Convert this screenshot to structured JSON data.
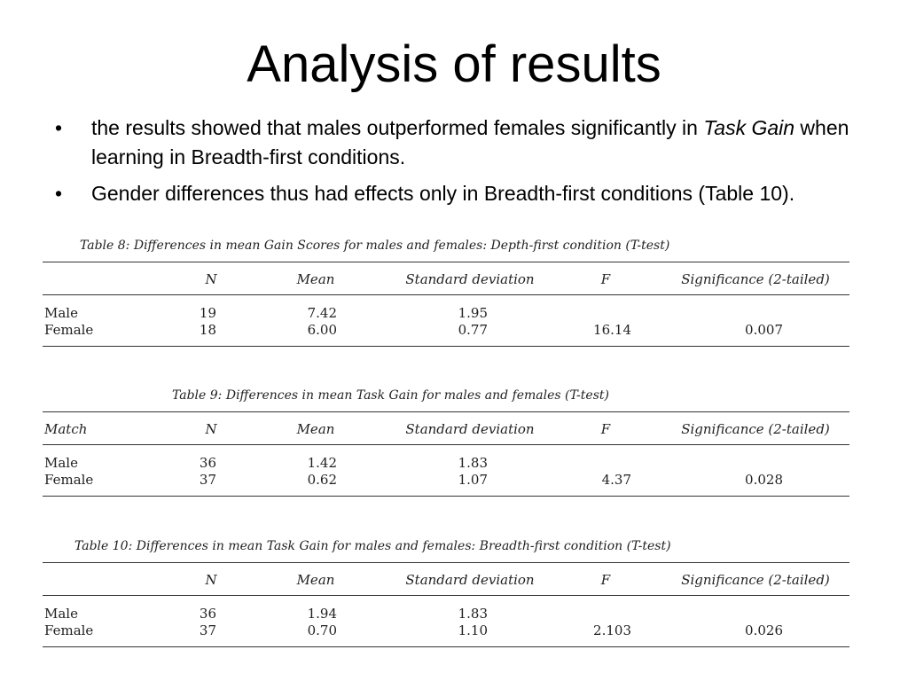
{
  "slide": {
    "title": "Analysis of results"
  },
  "bullets": [
    {
      "marker": "•",
      "text_before": "the results showed that males outperformed females significantly in ",
      "italic": "Task Gain",
      "text_after": " when learning in Breadth-first conditions."
    },
    {
      "marker": "•",
      "text": "Gender differences thus had effects only in Breadth-first conditions (Table 10)."
    }
  ],
  "tables": [
    {
      "caption": "Table 8:  Differences in mean Gain Scores for males and females: Depth-first condition (T-test)",
      "headers": [
        "",
        "N",
        "Mean",
        "Standard deviation",
        "F",
        "Significance (2-tailed)"
      ],
      "rows": [
        [
          "Male",
          "19",
          "7.42",
          "1.95",
          "",
          ""
        ],
        [
          "Female",
          "18",
          "6.00",
          "0.77",
          "16.14",
          "0.007"
        ]
      ]
    },
    {
      "caption": "Table 9:  Differences in mean Task Gain for males and females (T-test)",
      "headers": [
        "Match",
        "N",
        "Mean",
        "Standard deviation",
        "F",
        "Significance (2-tailed)"
      ],
      "rows": [
        [
          "Male",
          "36",
          "1.42",
          "1.83",
          "",
          ""
        ],
        [
          "Female",
          "37",
          "0.62",
          "1.07",
          "4.37",
          "0.028"
        ]
      ]
    },
    {
      "caption": "Table 10:  Differences in mean Task Gain for males and females: Breadth-first condition (T-test)",
      "headers": [
        "",
        "N",
        "Mean",
        "Standard deviation",
        "F",
        "Significance (2-tailed)"
      ],
      "rows": [
        [
          "Male",
          "36",
          "1.94",
          "1.83",
          "",
          ""
        ],
        [
          "Female",
          "37",
          "0.70",
          "1.10",
          "2.103",
          "0.026"
        ]
      ]
    }
  ]
}
